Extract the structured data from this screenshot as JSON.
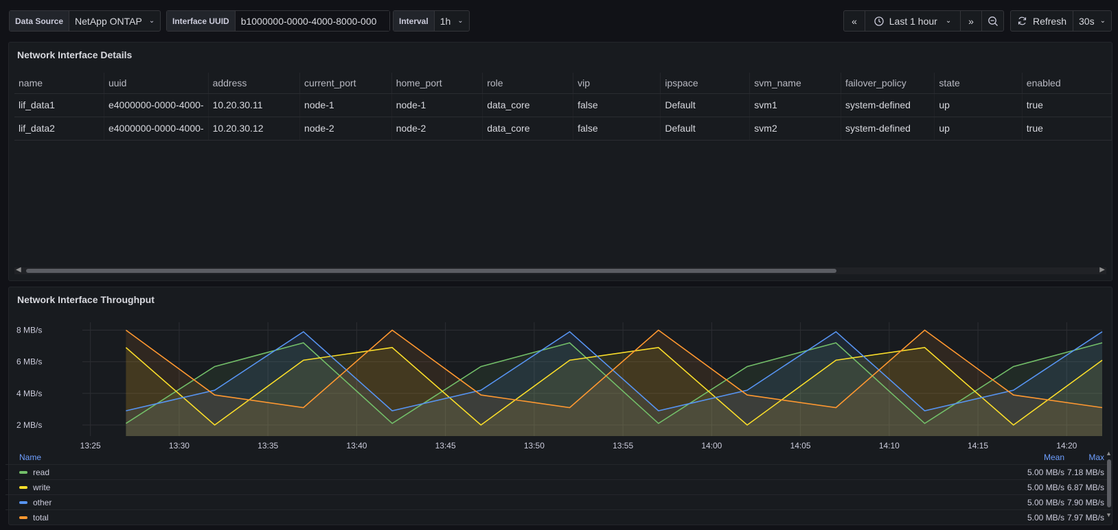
{
  "vars": {
    "data_source_label": "Data Source",
    "data_source_value": "NetApp ONTAP",
    "uuid_label": "Interface UUID",
    "uuid_value": "b1000000-0000-4000-8000-000",
    "interval_label": "Interval",
    "interval_value": "1h"
  },
  "timepicker": {
    "range": "Last 1 hour",
    "refresh_label": "Refresh",
    "refresh_interval": "30s"
  },
  "details_panel": {
    "title": "Network Interface Details",
    "columns": [
      "name",
      "uuid",
      "address",
      "current_port",
      "home_port",
      "role",
      "vip",
      "ipspace",
      "svm_name",
      "failover_policy",
      "state",
      "enabled"
    ],
    "rows": [
      [
        "lif_data1",
        "e4000000-0000-4000-",
        "10.20.30.11",
        "node-1",
        "node-1",
        "data_core",
        "false",
        "Default",
        "svm1",
        "system-defined",
        "up",
        "true"
      ],
      [
        "lif_data2",
        "e4000000-0000-4000-",
        "10.20.30.12",
        "node-2",
        "node-2",
        "data_core",
        "false",
        "Default",
        "svm2",
        "system-defined",
        "up",
        "true"
      ]
    ]
  },
  "throughput_panel": {
    "title": "Network Interface Throughput",
    "legend_name_header": "Name",
    "legend_mean_header": "Mean",
    "legend_max_header": "Max",
    "legend": [
      {
        "name": "read",
        "color": "#73bf69",
        "mean": "5.00 MB/s",
        "max": "7.18 MB/s"
      },
      {
        "name": "write",
        "color": "#fade2a",
        "mean": "5.00 MB/s",
        "max": "6.87 MB/s"
      },
      {
        "name": "other",
        "color": "#5794f2",
        "mean": "5.00 MB/s",
        "max": "7.90 MB/s"
      },
      {
        "name": "total",
        "color": "#ff9830",
        "mean": "5.00 MB/s",
        "max": "7.97 MB/s"
      }
    ]
  },
  "chart_data": {
    "type": "area",
    "title": "Network Interface Throughput",
    "ylabel": "",
    "y_ticks": [
      "2 MB/s",
      "4 MB/s",
      "6 MB/s",
      "8 MB/s"
    ],
    "y_tick_values": [
      2,
      4,
      6,
      8
    ],
    "ylim": [
      1.3,
      8.5
    ],
    "x_ticks": [
      "13:25",
      "13:30",
      "13:35",
      "13:40",
      "13:45",
      "13:50",
      "13:55",
      "14:00",
      "14:05",
      "14:10",
      "14:15",
      "14:20"
    ],
    "x_tick_minutes": [
      0,
      5,
      10,
      15,
      20,
      25,
      30,
      35,
      40,
      45,
      50,
      55
    ],
    "x_minutes_range": [
      -2.0,
      57.0
    ],
    "x_minutes": [
      2,
      7,
      12,
      17,
      22,
      27,
      32,
      37,
      42,
      47,
      52,
      57
    ],
    "grid": true,
    "legend_position": "bottom",
    "series": [
      {
        "name": "read",
        "color": "#73bf69",
        "values": [
          2.1,
          5.7,
          7.2,
          2.1,
          5.7,
          7.2,
          2.1,
          5.7,
          7.2,
          2.1,
          5.7,
          7.2
        ]
      },
      {
        "name": "write",
        "color": "#fade2a",
        "values": [
          6.9,
          2.0,
          6.1,
          6.9,
          2.0,
          6.1,
          6.9,
          2.0,
          6.1,
          6.9,
          2.0,
          6.1
        ]
      },
      {
        "name": "other",
        "color": "#5794f2",
        "values": [
          2.9,
          4.2,
          7.9,
          2.9,
          4.2,
          7.9,
          2.9,
          4.2,
          7.9,
          2.9,
          4.2,
          7.9
        ]
      },
      {
        "name": "total",
        "color": "#ff9830",
        "values": [
          8.0,
          3.9,
          3.1,
          8.0,
          3.9,
          3.1,
          8.0,
          3.9,
          3.1,
          8.0,
          3.9,
          3.1
        ]
      }
    ]
  }
}
